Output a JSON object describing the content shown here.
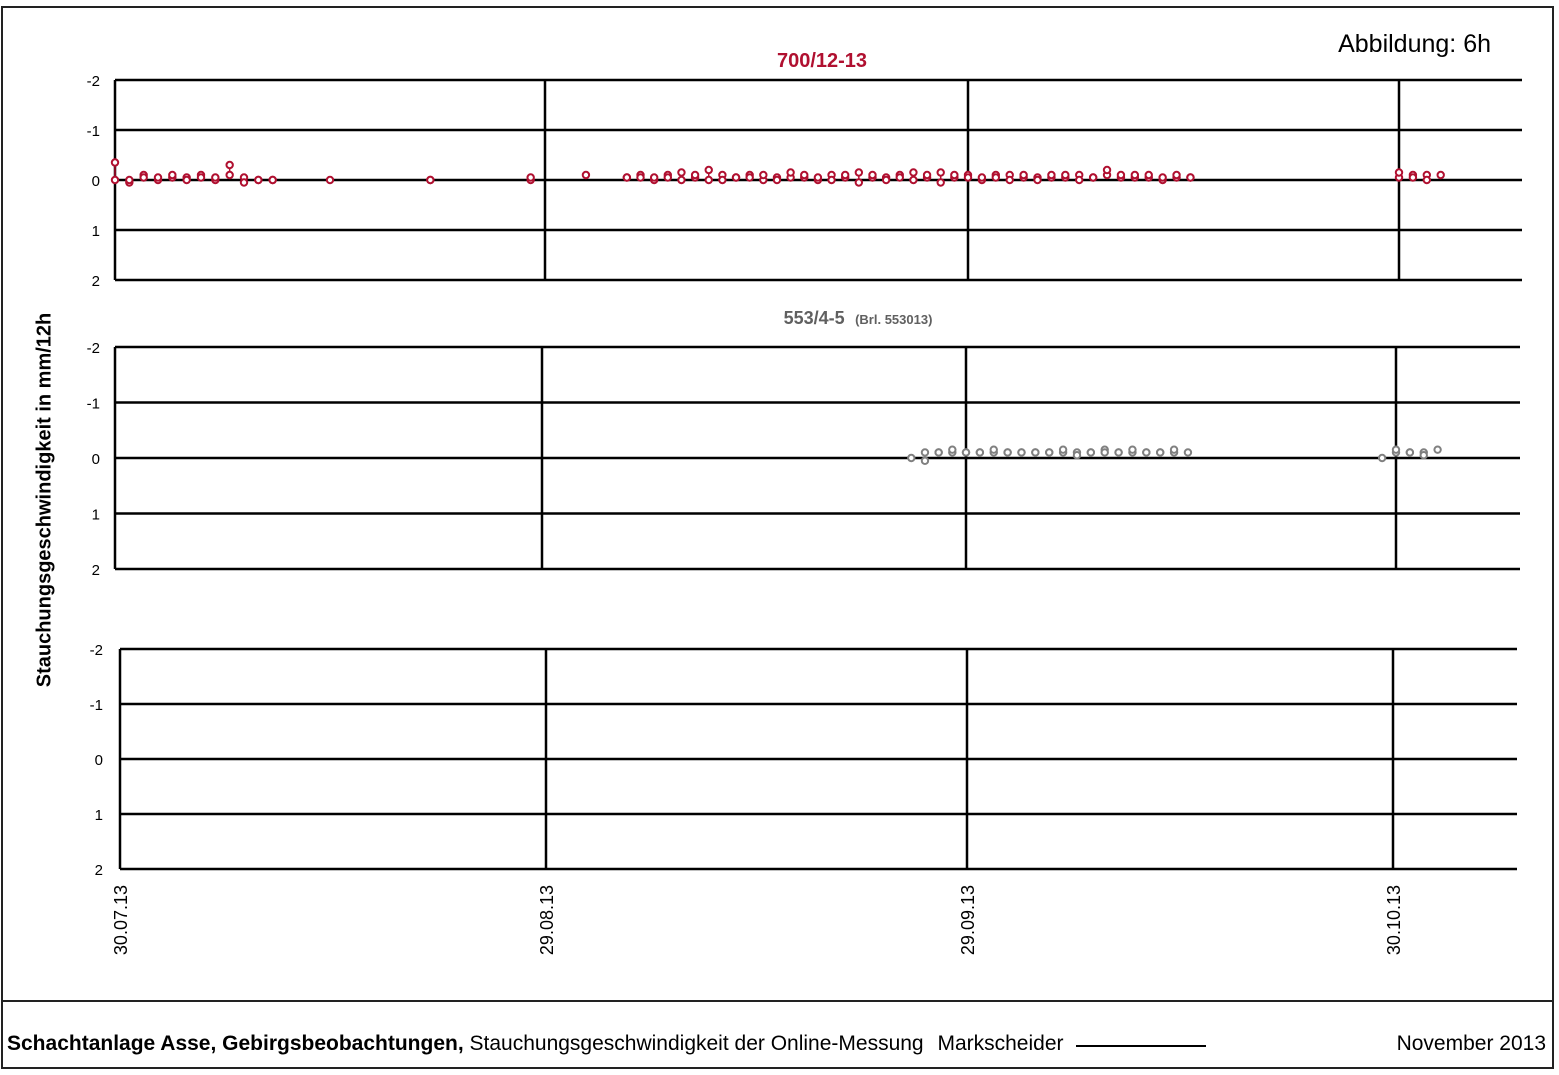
{
  "figure_label": "Abbildung:  6h",
  "footer": {
    "bold_text": "Schachtanlage Asse, Gebirgsbeobachtungen,",
    "normal_text": " Stauchungsgeschwindigkeit der Online-Messung",
    "signer_label": "Markscheider",
    "date": "November 2013"
  },
  "chart_data": [
    {
      "type": "scatter",
      "title": "700/12-13",
      "subtitle": "",
      "ylabel": "Stauchungsgeschwindigkeit in mm/12h",
      "ylim": [
        -2,
        2
      ],
      "y_inverted": true,
      "yticks": [
        -2,
        -1,
        0,
        1,
        2
      ],
      "xlim": [
        "2013-07-30",
        "2013-11-03"
      ],
      "xticks": [
        "30.07.13",
        "29.08.13",
        "29.09.13",
        "30.10.13"
      ],
      "grid": true,
      "color": "#b01030",
      "series": [
        {
          "x": [
            "2013-07-30",
            "2013-07-30",
            "2013-07-31",
            "2013-07-31",
            "2013-08-01",
            "2013-08-01",
            "2013-08-02",
            "2013-08-02",
            "2013-08-03",
            "2013-08-03",
            "2013-08-04",
            "2013-08-04",
            "2013-08-05",
            "2013-08-05",
            "2013-08-06",
            "2013-08-06",
            "2013-08-07",
            "2013-08-07",
            "2013-08-08",
            "2013-08-08",
            "2013-08-09",
            "2013-08-09",
            "2013-08-10",
            "2013-08-10",
            "2013-08-14",
            "2013-08-21",
            "2013-08-21",
            "2013-08-28",
            "2013-08-28",
            "2013-09-01",
            "2013-09-04",
            "2013-09-04",
            "2013-09-05",
            "2013-09-05",
            "2013-09-06",
            "2013-09-06",
            "2013-09-07",
            "2013-09-07",
            "2013-09-08",
            "2013-09-08",
            "2013-09-09",
            "2013-09-09",
            "2013-09-10",
            "2013-09-10",
            "2013-09-11",
            "2013-09-11",
            "2013-09-12",
            "2013-09-12",
            "2013-09-13",
            "2013-09-13",
            "2013-09-14",
            "2013-09-14",
            "2013-09-15",
            "2013-09-15",
            "2013-09-16",
            "2013-09-16",
            "2013-09-17",
            "2013-09-17",
            "2013-09-18",
            "2013-09-18",
            "2013-09-19",
            "2013-09-19",
            "2013-09-20",
            "2013-09-20",
            "2013-09-21",
            "2013-09-21",
            "2013-09-22",
            "2013-09-22",
            "2013-09-23",
            "2013-09-23",
            "2013-09-24",
            "2013-09-24",
            "2013-09-25",
            "2013-09-25",
            "2013-09-26",
            "2013-09-26",
            "2013-09-27",
            "2013-09-27",
            "2013-09-28",
            "2013-09-28",
            "2013-09-29",
            "2013-09-29",
            "2013-09-30",
            "2013-09-30",
            "2013-10-01",
            "2013-10-01",
            "2013-10-02",
            "2013-10-02",
            "2013-10-03",
            "2013-10-03",
            "2013-10-04",
            "2013-10-04",
            "2013-10-05",
            "2013-10-05",
            "2013-10-06",
            "2013-10-06",
            "2013-10-07",
            "2013-10-07",
            "2013-10-08",
            "2013-10-08",
            "2013-10-09",
            "2013-10-09",
            "2013-10-10",
            "2013-10-10",
            "2013-10-11",
            "2013-10-11",
            "2013-10-12",
            "2013-10-12",
            "2013-10-13",
            "2013-10-13",
            "2013-10-14",
            "2013-10-14",
            "2013-10-15",
            "2013-10-15",
            "2013-10-30",
            "2013-10-30",
            "2013-10-31",
            "2013-10-31",
            "2013-11-01",
            "2013-11-01",
            "2013-11-02"
          ],
          "y": [
            -0.35,
            0.0,
            0.05,
            0.0,
            -0.1,
            -0.05,
            0.0,
            -0.05,
            -0.05,
            -0.1,
            -0.05,
            0.0,
            -0.1,
            -0.05,
            0.0,
            -0.05,
            -0.1,
            -0.3,
            -0.05,
            0.05,
            0.0,
            0.0,
            0.0,
            0.0,
            0.0,
            0.0,
            0.0,
            0.0,
            -0.05,
            -0.1,
            -0.05,
            -0.05,
            -0.1,
            -0.05,
            0.0,
            -0.05,
            -0.1,
            -0.05,
            -0.15,
            0.0,
            -0.05,
            -0.1,
            0.0,
            -0.2,
            -0.1,
            0.0,
            -0.05,
            -0.05,
            -0.1,
            -0.05,
            0.0,
            -0.1,
            -0.05,
            0.0,
            -0.05,
            -0.15,
            -0.05,
            -0.1,
            0.0,
            -0.05,
            -0.1,
            0.0,
            -0.05,
            -0.1,
            -0.15,
            0.05,
            -0.05,
            -0.1,
            -0.05,
            0.0,
            -0.1,
            -0.05,
            -0.15,
            0.0,
            -0.05,
            -0.1,
            -0.15,
            0.05,
            -0.05,
            -0.1,
            -0.1,
            -0.05,
            0.0,
            -0.05,
            -0.1,
            -0.05,
            -0.1,
            0.0,
            -0.05,
            -0.1,
            -0.05,
            0.0,
            -0.05,
            -0.1,
            -0.05,
            -0.1,
            -0.1,
            0.0,
            -0.05,
            -0.05,
            -0.1,
            -0.2,
            -0.05,
            -0.1,
            -0.05,
            -0.1,
            -0.05,
            -0.1,
            0.0,
            -0.05,
            -0.05,
            -0.1,
            -0.05,
            -0.05,
            -0.05,
            -0.15,
            -0.1,
            -0.05,
            -0.1,
            0.0,
            -0.1
          ]
        }
      ]
    },
    {
      "type": "scatter",
      "title": "553/4-5",
      "subtitle": "(Brl. 553013)",
      "ylim": [
        -2,
        2
      ],
      "y_inverted": true,
      "yticks": [
        -2,
        -1,
        0,
        1,
        2
      ],
      "xlim": [
        "2013-07-30",
        "2013-11-03"
      ],
      "grid": true,
      "color": "#808080",
      "series": [
        {
          "x": [
            "2013-09-25",
            "2013-09-26",
            "2013-09-26",
            "2013-09-27",
            "2013-09-27",
            "2013-09-28",
            "2013-09-28",
            "2013-09-29",
            "2013-09-29",
            "2013-09-30",
            "2013-09-30",
            "2013-10-01",
            "2013-10-01",
            "2013-10-02",
            "2013-10-02",
            "2013-10-03",
            "2013-10-03",
            "2013-10-04",
            "2013-10-04",
            "2013-10-05",
            "2013-10-05",
            "2013-10-06",
            "2013-10-06",
            "2013-10-07",
            "2013-10-07",
            "2013-10-08",
            "2013-10-08",
            "2013-10-09",
            "2013-10-09",
            "2013-10-10",
            "2013-10-10",
            "2013-10-11",
            "2013-10-11",
            "2013-10-12",
            "2013-10-12",
            "2013-10-13",
            "2013-10-13",
            "2013-10-14",
            "2013-10-14",
            "2013-10-15",
            "2013-10-29",
            "2013-10-30",
            "2013-10-30",
            "2013-10-31",
            "2013-10-31",
            "2013-11-01",
            "2013-11-01",
            "2013-11-02"
          ],
          "y": [
            0.0,
            0.05,
            -0.1,
            -0.1,
            -0.1,
            -0.1,
            -0.15,
            -0.1,
            -0.1,
            -0.1,
            -0.1,
            -0.1,
            -0.15,
            -0.1,
            -0.1,
            -0.1,
            -0.1,
            -0.1,
            -0.1,
            -0.1,
            -0.1,
            -0.1,
            -0.15,
            -0.1,
            -0.05,
            -0.1,
            -0.1,
            -0.15,
            -0.1,
            -0.1,
            -0.1,
            -0.1,
            -0.15,
            -0.1,
            -0.1,
            -0.1,
            -0.1,
            -0.1,
            -0.15,
            -0.1,
            0.0,
            -0.1,
            -0.15,
            -0.1,
            -0.1,
            -0.1,
            -0.05,
            -0.15
          ]
        }
      ]
    },
    {
      "type": "scatter",
      "title": "",
      "ylim": [
        -2,
        2
      ],
      "y_inverted": true,
      "yticks": [
        -2,
        -1,
        0,
        1,
        2
      ],
      "xlim": [
        "2013-07-30",
        "2013-11-03"
      ],
      "xticks": [
        "30.07.13",
        "29.08.13",
        "29.09.13",
        "30.10.13"
      ],
      "grid": true,
      "series": []
    }
  ]
}
